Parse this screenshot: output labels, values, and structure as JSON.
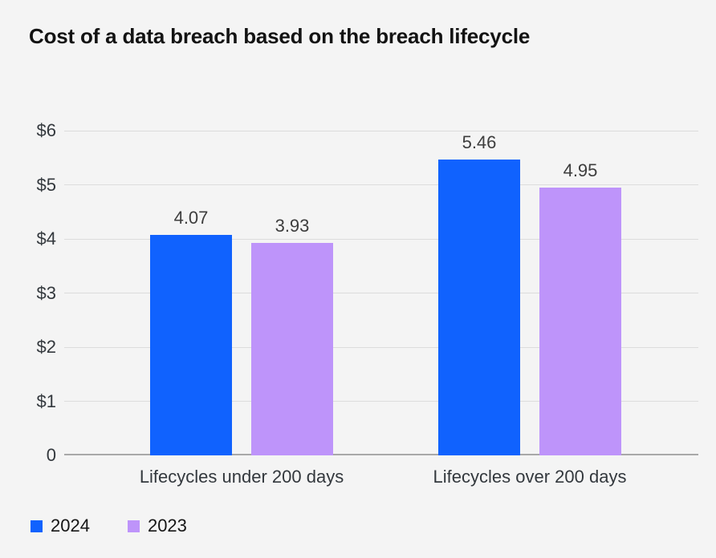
{
  "page": {
    "background_color": "#f4f4f4"
  },
  "chart_data": {
    "type": "bar",
    "title": "Cost of a data breach based on the breach lifecycle",
    "categories": [
      "Lifecycles under 200 days",
      "Lifecycles over 200 days"
    ],
    "series": [
      {
        "name": "2024",
        "color": "#1062fe",
        "values": [
          4.07,
          5.46
        ],
        "data_labels": [
          "4.07",
          "5.46"
        ]
      },
      {
        "name": "2023",
        "color": "#be94fa",
        "values": [
          3.93,
          4.95
        ],
        "data_labels": [
          "3.93",
          "4.95"
        ]
      }
    ],
    "ylim": [
      0,
      6
    ],
    "ytick_labels": [
      "0",
      "$1",
      "$2",
      "$3",
      "$4",
      "$5",
      "$6"
    ],
    "xlabel": "",
    "ylabel": "",
    "grid": true,
    "legend": {
      "position": "bottom-left",
      "entries": [
        "2024",
        "2023"
      ]
    }
  }
}
